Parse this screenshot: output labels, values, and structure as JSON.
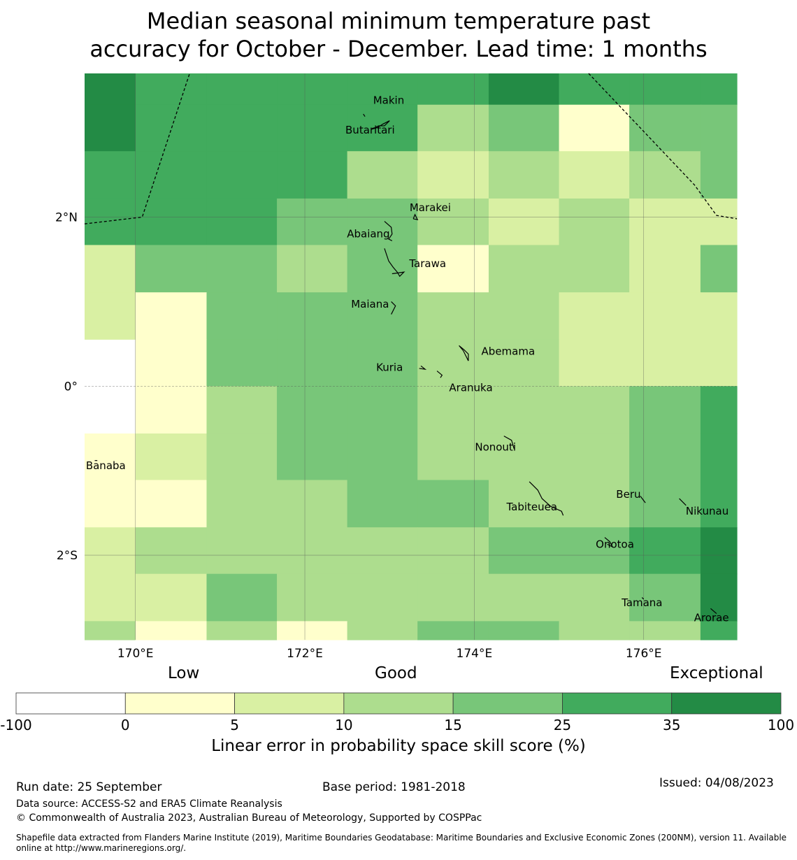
{
  "title": {
    "line1": "Median seasonal minimum temperature past",
    "line2": "accuracy for October - December. Lead time: 1 months"
  },
  "map": {
    "lon_range": [
      169.4,
      177.1
    ],
    "lat_range": [
      -3.0,
      3.7
    ],
    "grid_lons": [
      170.0,
      170.84,
      171.67,
      172.5,
      173.33,
      174.17,
      175.0,
      175.83,
      176.67
    ],
    "grid_lats": [
      3.33,
      2.78,
      2.22,
      1.67,
      1.11,
      0.55,
      0.0,
      -0.56,
      -1.11,
      -1.67,
      -2.22,
      -2.78
    ],
    "cell_colors": [
      [
        "#238b45",
        "#41ab5d",
        "#41ab5d",
        "#41ab5d",
        "#41ab5d",
        "#41ab5d",
        "#238b45",
        "#41ab5d",
        "#41ab5d",
        "#41ab5d"
      ],
      [
        "#238b45",
        "#41ab5d",
        "#41ab5d",
        "#41ab5d",
        "#41ab5d",
        "#addd8e",
        "#78c679",
        "#ffffcc",
        "#78c679",
        "#78c679"
      ],
      [
        "#41ab5d",
        "#41ab5d",
        "#41ab5d",
        "#41ab5d",
        "#addd8e",
        "#d9f0a3",
        "#addd8e",
        "#d9f0a3",
        "#addd8e",
        "#78c679"
      ],
      [
        "#41ab5d",
        "#41ab5d",
        "#41ab5d",
        "#78c679",
        "#78c679",
        "#addd8e",
        "#d9f0a3",
        "#addd8e",
        "#d9f0a3",
        "#d9f0a3"
      ],
      [
        "#d9f0a3",
        "#78c679",
        "#78c679",
        "#addd8e",
        "#78c679",
        "#ffffcc",
        "#addd8e",
        "#addd8e",
        "#d9f0a3",
        "#78c679"
      ],
      [
        "#d9f0a3",
        "#ffffcc",
        "#78c679",
        "#78c679",
        "#78c679",
        "#addd8e",
        "#addd8e",
        "#d9f0a3",
        "#d9f0a3",
        "#d9f0a3"
      ],
      [
        "#ffffff",
        "#ffffcc",
        "#78c679",
        "#78c679",
        "#78c679",
        "#addd8e",
        "#addd8e",
        "#d9f0a3",
        "#d9f0a3",
        "#d9f0a3"
      ],
      [
        "#ffffff",
        "#ffffcc",
        "#addd8e",
        "#78c679",
        "#78c679",
        "#addd8e",
        "#addd8e",
        "#addd8e",
        "#78c679",
        "#41ab5d"
      ],
      [
        "#ffffcc",
        "#d9f0a3",
        "#addd8e",
        "#78c679",
        "#78c679",
        "#addd8e",
        "#addd8e",
        "#addd8e",
        "#78c679",
        "#41ab5d"
      ],
      [
        "#ffffcc",
        "#ffffcc",
        "#addd8e",
        "#addd8e",
        "#78c679",
        "#78c679",
        "#addd8e",
        "#addd8e",
        "#78c679",
        "#41ab5d"
      ],
      [
        "#d9f0a3",
        "#addd8e",
        "#addd8e",
        "#addd8e",
        "#addd8e",
        "#addd8e",
        "#78c679",
        "#78c679",
        "#41ab5d",
        "#238b45"
      ],
      [
        "#d9f0a3",
        "#d9f0a3",
        "#78c679",
        "#addd8e",
        "#addd8e",
        "#addd8e",
        "#addd8e",
        "#addd8e",
        "#78c679",
        "#238b45"
      ],
      [
        "#addd8e",
        "#ffffcc",
        "#addd8e",
        "#ffffcc",
        "#addd8e",
        "#78c679",
        "#78c679",
        "#addd8e",
        "#addd8e",
        "#41ab5d"
      ]
    ],
    "lon_ticks": [
      {
        "value": 170,
        "label": "170°E"
      },
      {
        "value": 172,
        "label": "172°E"
      },
      {
        "value": 174,
        "label": "174°E"
      },
      {
        "value": 176,
        "label": "176°E"
      }
    ],
    "lat_ticks": [
      {
        "value": 2,
        "label": "2°N"
      },
      {
        "value": 0,
        "label": "0°"
      },
      {
        "value": -2,
        "label": "2°S"
      }
    ],
    "eez_boundaries": [
      [
        [
          169.4,
          1.92
        ],
        [
          170.08,
          2.0
        ],
        [
          170.64,
          3.7
        ]
      ],
      [
        [
          175.35,
          3.7
        ],
        [
          176.6,
          2.38
        ],
        [
          176.86,
          2.02
        ],
        [
          177.1,
          1.98
        ]
      ]
    ],
    "islands": [
      {
        "name": "Makin",
        "lon": 172.99,
        "lat": 3.38,
        "outline": [
          [
            172.69,
            3.22
          ],
          [
            172.71,
            3.19
          ]
        ]
      },
      {
        "name": "Butaritari",
        "lon": 172.77,
        "lat": 3.03,
        "outline": [
          [
            172.79,
            3.04
          ],
          [
            172.87,
            3.08
          ],
          [
            172.94,
            3.08
          ],
          [
            173.0,
            3.14
          ],
          [
            172.92,
            3.1
          ],
          [
            172.86,
            3.06
          ],
          [
            172.79,
            3.04
          ]
        ]
      },
      {
        "name": "Marakei",
        "lon": 173.48,
        "lat": 2.11,
        "outline": [
          [
            173.28,
            1.98
          ],
          [
            173.3,
            2.03
          ],
          [
            173.33,
            1.97
          ],
          [
            173.28,
            1.98
          ]
        ]
      },
      {
        "name": "Abaiang",
        "lon": 172.75,
        "lat": 1.8,
        "outline": [
          [
            172.94,
            1.95
          ],
          [
            173.02,
            1.88
          ],
          [
            173.03,
            1.8
          ],
          [
            172.99,
            1.74
          ],
          [
            173.03,
            1.72
          ]
        ]
      },
      {
        "name": "Tarawa",
        "lon": 173.45,
        "lat": 1.45,
        "outline": [
          [
            172.94,
            1.63
          ],
          [
            172.99,
            1.48
          ],
          [
            173.04,
            1.41
          ],
          [
            173.09,
            1.35
          ],
          [
            173.12,
            1.3
          ],
          [
            173.17,
            1.35
          ],
          [
            173.03,
            1.33
          ]
        ]
      },
      {
        "name": "Maiana",
        "lon": 172.77,
        "lat": 0.97,
        "outline": [
          [
            173.02,
            1.0
          ],
          [
            173.07,
            0.95
          ],
          [
            173.02,
            0.85
          ]
        ]
      },
      {
        "name": "Abemama",
        "lon": 174.4,
        "lat": 0.41,
        "outline": [
          [
            173.82,
            0.48
          ],
          [
            173.88,
            0.43
          ],
          [
            173.93,
            0.38
          ],
          [
            173.93,
            0.3
          ],
          [
            173.87,
            0.42
          ],
          [
            173.82,
            0.48
          ]
        ]
      },
      {
        "name": "Kuria",
        "lon": 173.0,
        "lat": 0.22,
        "outline": [
          [
            173.37,
            0.24
          ],
          [
            173.42,
            0.2
          ],
          [
            173.35,
            0.21
          ]
        ]
      },
      {
        "name": "Aranuka",
        "lon": 173.96,
        "lat": -0.02,
        "outline": [
          [
            173.56,
            0.18
          ],
          [
            173.62,
            0.13
          ],
          [
            173.6,
            0.1
          ]
        ]
      },
      {
        "name": "Nonouti",
        "lon": 174.25,
        "lat": -0.72,
        "outline": [
          [
            174.35,
            -0.59
          ],
          [
            174.44,
            -0.64
          ],
          [
            174.47,
            -0.74
          ]
        ]
      },
      {
        "name": "Banaba",
        "lon": 169.65,
        "lat": -0.94,
        "outline": [
          [
            169.52,
            -0.88
          ],
          [
            169.55,
            -0.88
          ]
        ]
      },
      {
        "name": "Tabiteuea",
        "lon": 174.68,
        "lat": -1.43,
        "outline": [
          [
            174.65,
            -1.13
          ],
          [
            174.75,
            -1.23
          ],
          [
            174.8,
            -1.33
          ],
          [
            174.9,
            -1.42
          ],
          [
            175.03,
            -1.48
          ],
          [
            175.05,
            -1.53
          ]
        ]
      },
      {
        "name": "Beru",
        "lon": 175.82,
        "lat": -1.28,
        "outline": [
          [
            175.96,
            -1.3
          ],
          [
            176.02,
            -1.38
          ]
        ]
      },
      {
        "name": "Nikunau",
        "lon": 176.75,
        "lat": -1.48,
        "outline": [
          [
            176.42,
            -1.33
          ],
          [
            176.5,
            -1.41
          ]
        ]
      },
      {
        "name": "Onotoa",
        "lon": 175.66,
        "lat": -1.87,
        "outline": [
          [
            175.54,
            -1.79
          ],
          [
            175.6,
            -1.84
          ],
          [
            175.63,
            -1.9
          ],
          [
            175.57,
            -1.87
          ]
        ]
      },
      {
        "name": "Tamana",
        "lon": 175.98,
        "lat": -2.56,
        "outline": [
          [
            175.98,
            -2.5
          ],
          [
            176.0,
            -2.52
          ]
        ]
      },
      {
        "name": "Arorae",
        "lon": 176.8,
        "lat": -2.74,
        "outline": [
          [
            176.79,
            -2.63
          ],
          [
            176.86,
            -2.69
          ]
        ]
      }
    ]
  },
  "legend": {
    "band_labels": [
      "Low",
      "Good",
      "Exceptional"
    ],
    "bins": [
      {
        "color": "#ffffff"
      },
      {
        "color": "#ffffcc"
      },
      {
        "color": "#d9f0a3"
      },
      {
        "color": "#addd8e"
      },
      {
        "color": "#78c679"
      },
      {
        "color": "#41ab5d"
      },
      {
        "color": "#238b45"
      }
    ],
    "tick_labels": [
      "-100",
      "0",
      "5",
      "10",
      "15",
      "25",
      "35",
      "100"
    ],
    "axis_label": "Linear error in probability space skill score (%)"
  },
  "footer": {
    "run_date": "Run date: 25 September",
    "base_period": "Base period: 1981-2018",
    "issued": "Issued: 04/08/2023",
    "data_source": "Data source: ACCESS-S2 and ERA5 Climate Reanalysis",
    "copyright": "© Commonwealth of Australia 2023, Australian Bureau of Meteorology, Supported by COSPPac",
    "shapefile": "Shapefile data extracted from Flanders Marine Institute (2019), Maritime Boundaries Geodatabase: Maritime Boundaries and Exclusive Economic Zones (200NM), version 11. Available online at http://www.marineregions.org/."
  }
}
